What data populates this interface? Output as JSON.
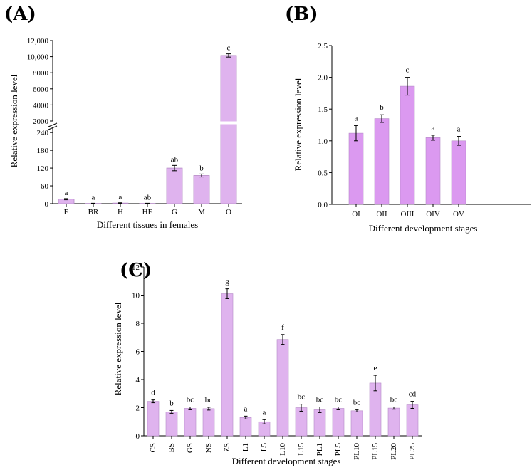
{
  "colors": {
    "bar_fill": "#dfb3ee",
    "bar_fill_b": "#db99f0",
    "bar_stroke": "#b58bc6",
    "axis": "#000000"
  },
  "chart_data": [
    {
      "panel": "(A)",
      "type": "bar",
      "categories": [
        "E",
        "BR",
        "H",
        "HE",
        "G",
        "M",
        "O"
      ],
      "values": [
        15,
        1,
        2,
        1,
        120,
        95,
        10150
      ],
      "errors": [
        2,
        0.5,
        1,
        0.5,
        9,
        5,
        200
      ],
      "significance": [
        "a",
        "a",
        "a",
        "ab",
        "ab",
        "b",
        "c"
      ],
      "xlabel": "Different tissues in females",
      "ylabel": "Relative expression level",
      "axis_break": {
        "lower": [
          0,
          250
        ],
        "upper": [
          2000,
          12000
        ]
      },
      "yticks_lower": [
        "0",
        "60",
        "120",
        "180",
        "240"
      ],
      "yticks_upper": [
        "2000",
        "4000",
        "6000",
        "8000",
        "10,000",
        "12,000"
      ],
      "grid": false
    },
    {
      "panel": "(B)",
      "type": "bar",
      "categories": [
        "OI",
        "OII",
        "OIII",
        "OIV",
        "OV"
      ],
      "values": [
        1.12,
        1.35,
        1.86,
        1.05,
        1.0
      ],
      "errors": [
        0.12,
        0.06,
        0.14,
        0.04,
        0.07
      ],
      "significance": [
        "a",
        "b",
        "c",
        "a",
        "a"
      ],
      "xlabel": "Different development stages",
      "ylabel": "Relative expression level",
      "ylim": [
        0,
        2.5
      ],
      "yticks": [
        "0.0",
        "0.5",
        "1.0",
        "1.5",
        "2.0",
        "2.5"
      ],
      "grid": false
    },
    {
      "panel": "(C)",
      "type": "bar",
      "categories": [
        "CS",
        "BS",
        "GS",
        "NS",
        "ZS",
        "L1",
        "L5",
        "L10",
        "L15",
        "PL1",
        "PL5",
        "PL10",
        "PL15",
        "PL20",
        "PL25"
      ],
      "values": [
        2.45,
        1.7,
        1.95,
        1.93,
        10.1,
        1.3,
        1.0,
        6.85,
        2.0,
        1.85,
        1.95,
        1.78,
        3.75,
        1.97,
        2.2
      ],
      "errors": [
        0.1,
        0.1,
        0.1,
        0.1,
        0.35,
        0.1,
        0.15,
        0.35,
        0.25,
        0.2,
        0.1,
        0.08,
        0.55,
        0.08,
        0.25
      ],
      "significance": [
        "d",
        "b",
        "bc",
        "bc",
        "g",
        "a",
        "a",
        "f",
        "bc",
        "bc",
        "bc",
        "bc",
        "e",
        "bc",
        "cd"
      ],
      "xlabel": "Different development stages",
      "ylabel": "Relative expression level",
      "ylim": [
        0,
        12
      ],
      "yticks": [
        "0",
        "2",
        "4",
        "6",
        "8",
        "10",
        "12"
      ],
      "grid": false
    }
  ]
}
